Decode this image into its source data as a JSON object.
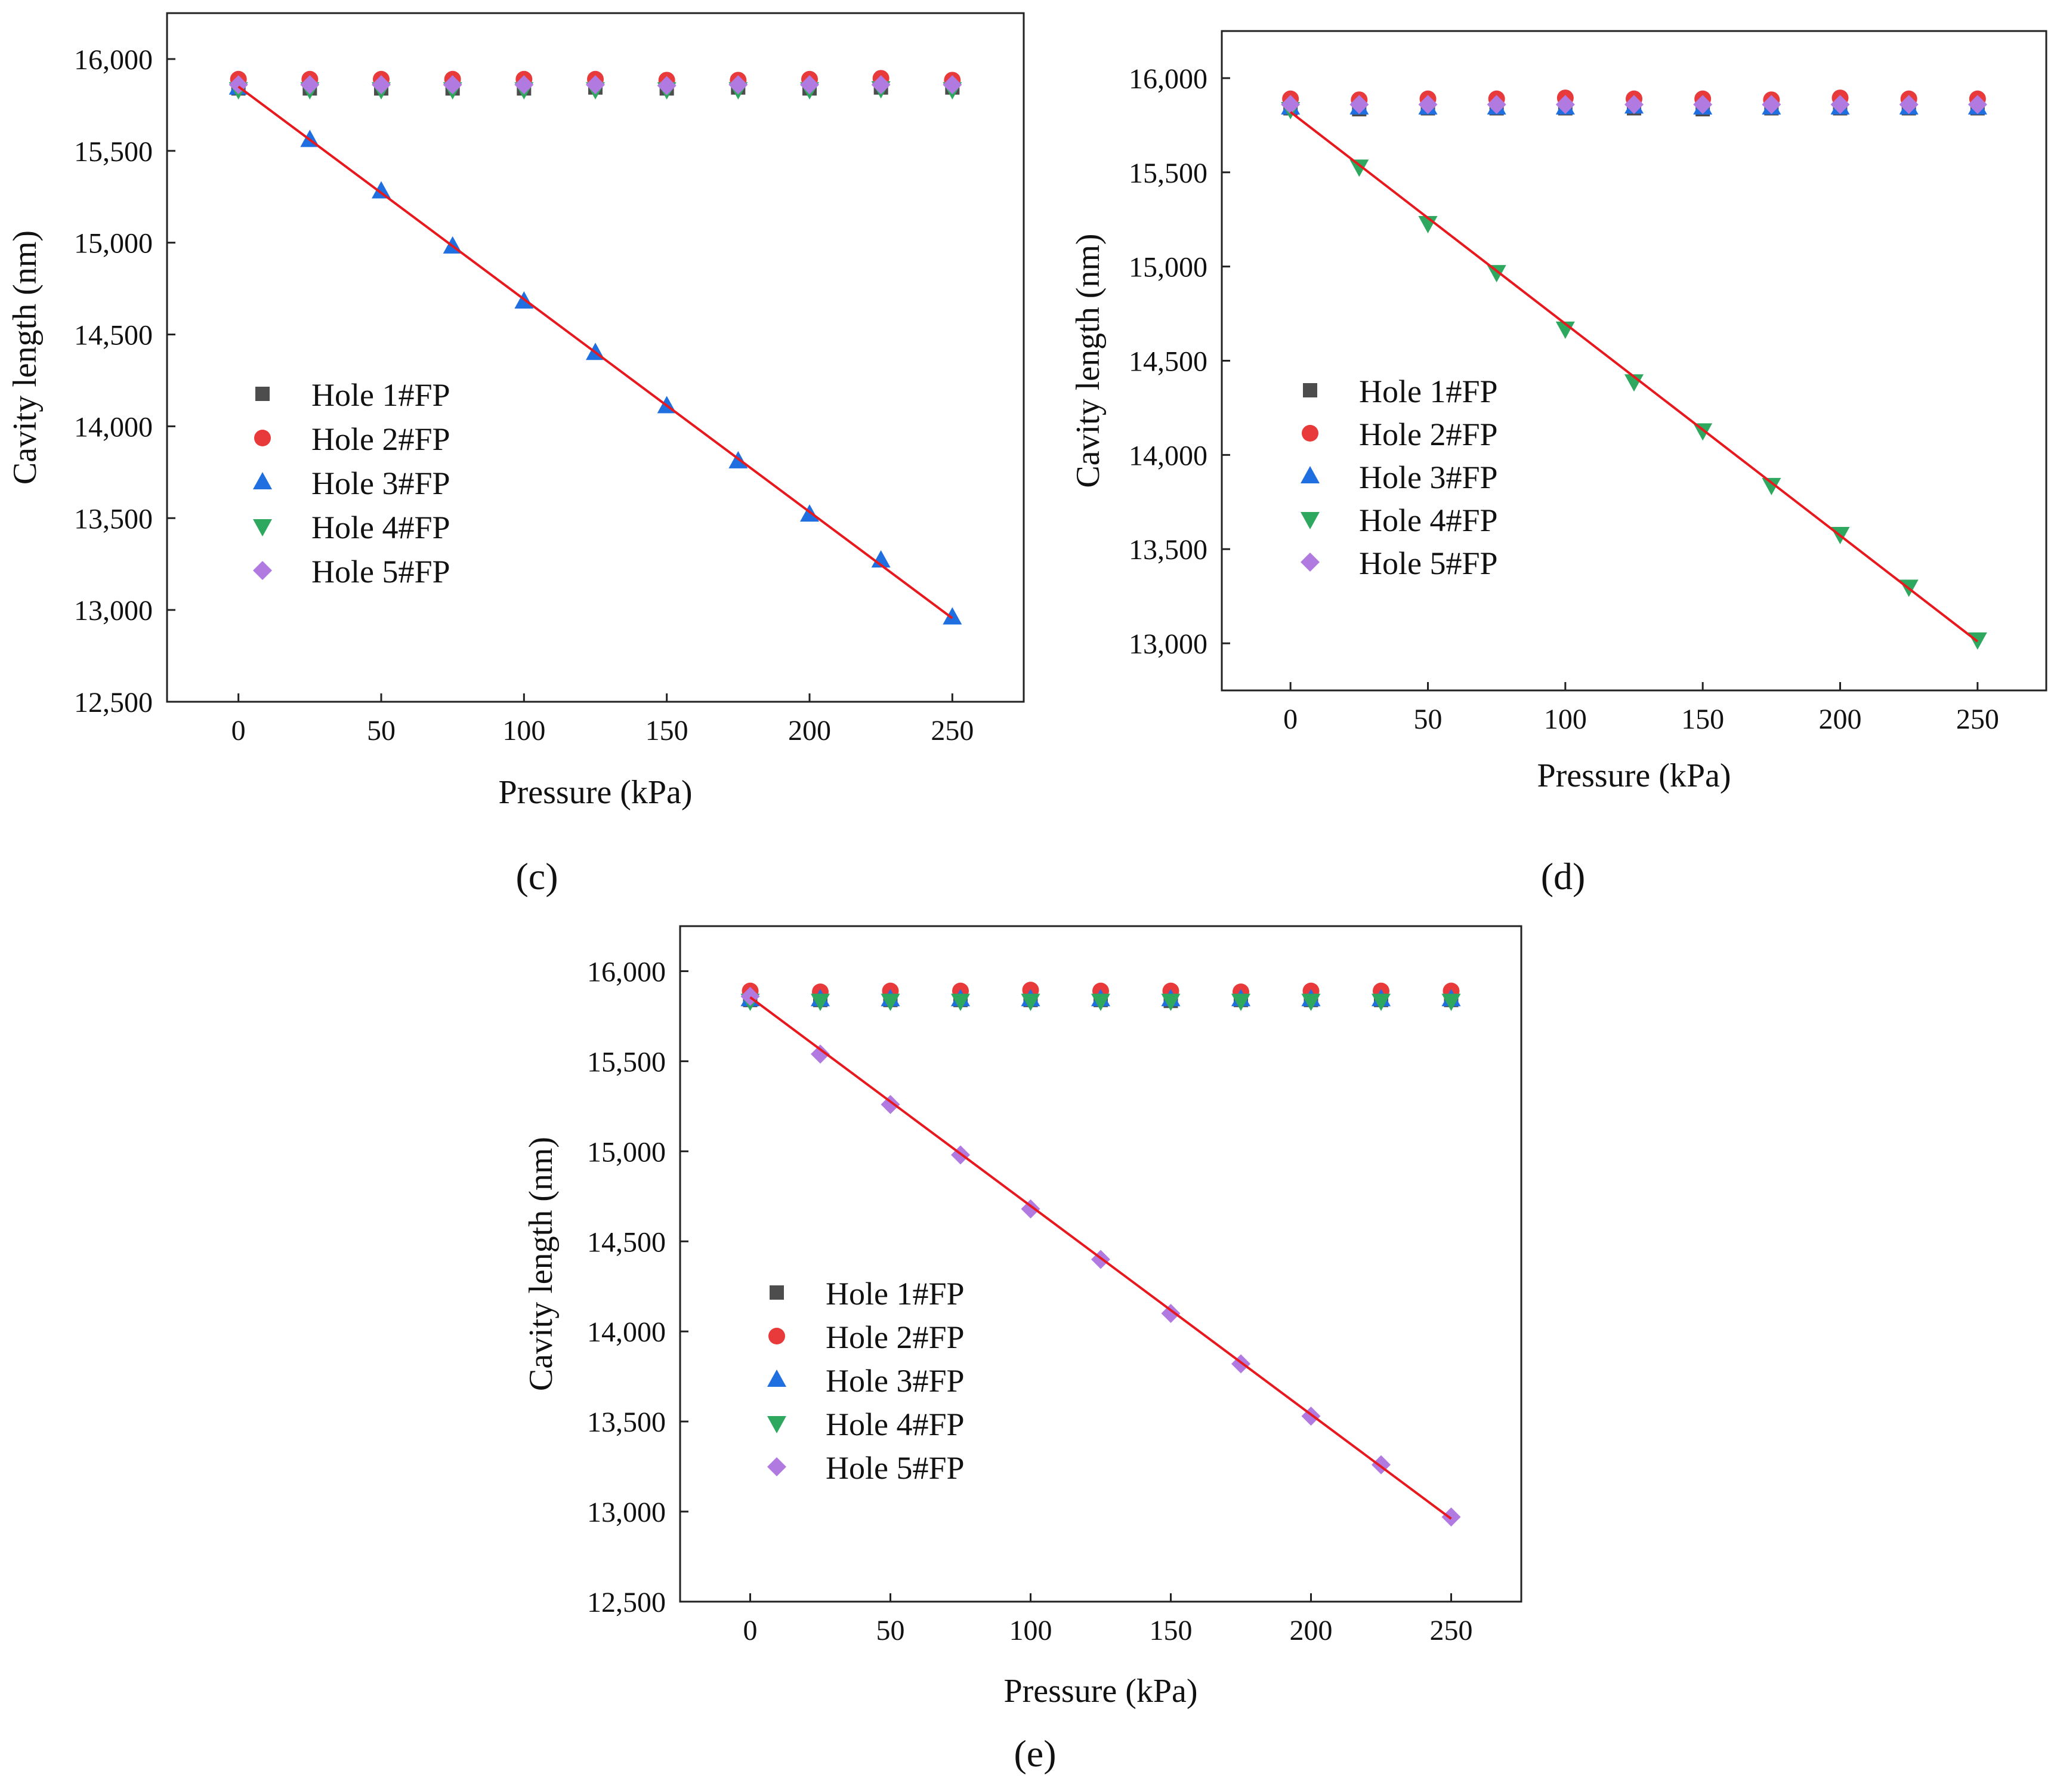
{
  "figure": {
    "captions": [
      "(c)",
      "(d)",
      "(e)"
    ]
  },
  "legend_entries": [
    "Hole 1#FP",
    "Hole 2#FP",
    "Hole 3#FP",
    "Hole 4#FP",
    "Hole 5#FP"
  ],
  "colors": {
    "hole1": "#4d4d4d",
    "hole2": "#e83a3a",
    "hole3": "#1f6fe0",
    "hole4": "#2ea85f",
    "hole5": "#b07ae0",
    "fit": "#e8191e"
  },
  "chart_data": [
    {
      "type": "scatter",
      "panel": "(c)",
      "xlabel": "Pressure (kPa)",
      "ylabel": "Cavity length (nm)",
      "xlim": [
        -25,
        275
      ],
      "ylim": [
        12500,
        16250
      ],
      "xticks": [
        0,
        50,
        100,
        150,
        200,
        250
      ],
      "xtick_labels": [
        "0",
        "50",
        "100",
        "150",
        "200",
        "250"
      ],
      "yticks": [
        12500,
        13000,
        13500,
        14000,
        14500,
        15000,
        15500,
        16000
      ],
      "ytick_labels": [
        "12,500",
        "13,000",
        "13,500",
        "14,000",
        "14,500",
        "15,000",
        "15,500",
        "16,000"
      ],
      "legend": "center-left",
      "x": [
        0,
        25,
        50,
        75,
        100,
        125,
        150,
        175,
        200,
        225,
        250
      ],
      "series": [
        {
          "name": "Hole 1#FP",
          "marker": "square",
          "values": [
            15840,
            15840,
            15840,
            15840,
            15840,
            15845,
            15840,
            15845,
            15840,
            15845,
            15845
          ]
        },
        {
          "name": "Hole 2#FP",
          "marker": "circle",
          "values": [
            15890,
            15890,
            15890,
            15890,
            15890,
            15890,
            15885,
            15885,
            15890,
            15895,
            15885
          ]
        },
        {
          "name": "Hole 3#FP",
          "marker": "triangle-up",
          "values": [
            15845,
            15560,
            15280,
            14980,
            14680,
            14400,
            14110,
            13810,
            13520,
            13270,
            12960
          ]
        },
        {
          "name": "Hole 4#FP",
          "marker": "triangle-down",
          "values": [
            15835,
            15835,
            15835,
            15835,
            15835,
            15835,
            15835,
            15835,
            15835,
            15840,
            15835
          ]
        },
        {
          "name": "Hole 5#FP",
          "marker": "diamond",
          "values": [
            15860,
            15860,
            15860,
            15860,
            15860,
            15860,
            15855,
            15860,
            15860,
            15860,
            15860
          ]
        }
      ],
      "fit": {
        "x": [
          0,
          250
        ],
        "y": [
          15850,
          12955
        ]
      }
    },
    {
      "type": "scatter",
      "panel": "(d)",
      "xlabel": "Pressure (kPa)",
      "ylabel": "Cavity length (nm)",
      "xlim": [
        -25,
        275
      ],
      "ylim": [
        12750,
        16250
      ],
      "xticks": [
        0,
        50,
        100,
        150,
        200,
        250
      ],
      "xtick_labels": [
        "0",
        "50",
        "100",
        "150",
        "200",
        "250"
      ],
      "yticks": [
        13000,
        13500,
        14000,
        14500,
        15000,
        15500,
        16000
      ],
      "ytick_labels": [
        "13,000",
        "13,500",
        "14,000",
        "14,500",
        "15,000",
        "15,500",
        "16,000"
      ],
      "legend": "center-left",
      "x": [
        0,
        25,
        50,
        75,
        100,
        125,
        150,
        175,
        200,
        225,
        250
      ],
      "series": [
        {
          "name": "Hole 1#FP",
          "marker": "square",
          "values": [
            15840,
            15835,
            15840,
            15840,
            15840,
            15840,
            15835,
            15840,
            15840,
            15840,
            15840
          ]
        },
        {
          "name": "Hole 2#FP",
          "marker": "circle",
          "values": [
            15890,
            15885,
            15890,
            15890,
            15895,
            15890,
            15890,
            15885,
            15895,
            15890,
            15890
          ]
        },
        {
          "name": "Hole 3#FP",
          "marker": "triangle-up",
          "values": [
            15845,
            15845,
            15845,
            15845,
            15845,
            15850,
            15845,
            15845,
            15845,
            15845,
            15845
          ]
        },
        {
          "name": "Hole 4#FP",
          "marker": "triangle-down",
          "values": [
            15835,
            15530,
            15230,
            14970,
            14670,
            14390,
            14130,
            13840,
            13580,
            13300,
            13020
          ]
        },
        {
          "name": "Hole 5#FP",
          "marker": "diamond",
          "values": [
            15860,
            15860,
            15860,
            15860,
            15860,
            15860,
            15860,
            15860,
            15860,
            15860,
            15860
          ]
        }
      ],
      "fit": {
        "x": [
          0,
          250
        ],
        "y": [
          15820,
          13010
        ]
      }
    },
    {
      "type": "scatter",
      "panel": "(e)",
      "xlabel": "Pressure (kPa)",
      "ylabel": "Cavity length (nm)",
      "xlim": [
        -25,
        275
      ],
      "ylim": [
        12500,
        16250
      ],
      "xticks": [
        0,
        50,
        100,
        150,
        200,
        250
      ],
      "xtick_labels": [
        "0",
        "50",
        "100",
        "150",
        "200",
        "250"
      ],
      "yticks": [
        12500,
        13000,
        13500,
        14000,
        14500,
        15000,
        15500,
        16000
      ],
      "ytick_labels": [
        "12,500",
        "13,000",
        "13,500",
        "14,000",
        "14,500",
        "15,000",
        "15,500",
        "16,000"
      ],
      "legend": "center-left",
      "x": [
        0,
        25,
        50,
        75,
        100,
        125,
        150,
        175,
        200,
        225,
        250
      ],
      "series": [
        {
          "name": "Hole 1#FP",
          "marker": "square",
          "values": [
            15840,
            15840,
            15840,
            15840,
            15840,
            15840,
            15835,
            15840,
            15840,
            15840,
            15840
          ]
        },
        {
          "name": "Hole 2#FP",
          "marker": "circle",
          "values": [
            15890,
            15885,
            15890,
            15890,
            15895,
            15890,
            15890,
            15885,
            15890,
            15890,
            15890
          ]
        },
        {
          "name": "Hole 3#FP",
          "marker": "triangle-up",
          "values": [
            15845,
            15845,
            15845,
            15845,
            15845,
            15845,
            15845,
            15845,
            15845,
            15845,
            15845
          ]
        },
        {
          "name": "Hole 4#FP",
          "marker": "triangle-down",
          "values": [
            15835,
            15835,
            15835,
            15835,
            15835,
            15835,
            15835,
            15835,
            15835,
            15835,
            15835
          ]
        },
        {
          "name": "Hole 5#FP",
          "marker": "diamond",
          "values": [
            15860,
            15540,
            15260,
            14980,
            14680,
            14400,
            14100,
            13820,
            13530,
            13260,
            12970
          ]
        }
      ],
      "fit": {
        "x": [
          0,
          250
        ],
        "y": [
          15855,
          12960
        ]
      }
    }
  ]
}
